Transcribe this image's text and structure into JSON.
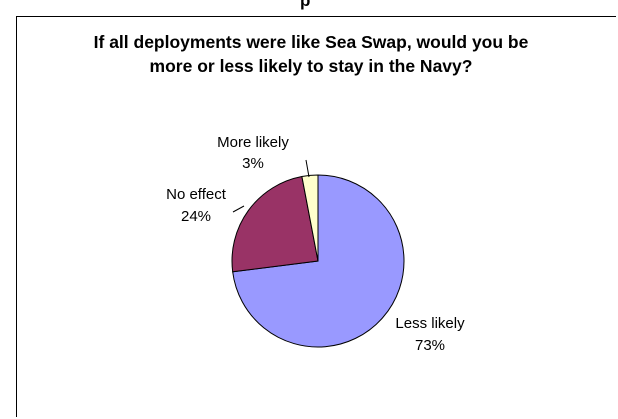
{
  "chart_data": {
    "type": "pie",
    "title": "If all deployments were like Sea Swap, would you be more or less likely to stay in the Navy?",
    "title_lines": [
      "If all deployments were like Sea Swap, would you be",
      "more or less likely to stay in the Navy?"
    ],
    "top_title_fragment": "p",
    "slices": [
      {
        "label": "Less likely",
        "value": 73,
        "value_label": "73%",
        "color": "#9999FF"
      },
      {
        "label": "No effect",
        "value": 24,
        "value_label": "24%",
        "color": "#993366"
      },
      {
        "label": "More likely",
        "value": 3,
        "value_label": "3%",
        "color": "#FFFFCC"
      }
    ],
    "legend": "none"
  }
}
